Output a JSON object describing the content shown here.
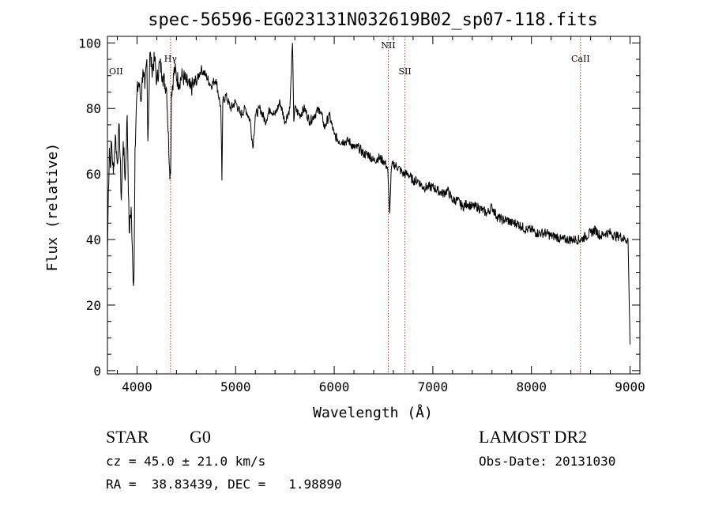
{
  "chart_data": {
    "type": "line",
    "title": "spec-56596-EG023131N032619B02_sp07-118.fits",
    "xlabel": "Wavelength (Å)",
    "ylabel": "Flux (relative)",
    "xlim": [
      3700,
      9100
    ],
    "ylim": [
      -1,
      102
    ],
    "x_ticks": [
      "4000",
      "5000",
      "6000",
      "7000",
      "8000",
      "9000"
    ],
    "y_ticks": [
      "0",
      "20",
      "40",
      "60",
      "80",
      "100"
    ],
    "grid": false,
    "series": [
      {
        "x": [
          3700,
          3710,
          3720,
          3730,
          3740,
          3760,
          3780,
          3800,
          3820,
          3840,
          3860,
          3880,
          3900,
          3920,
          3940,
          3960,
          3970,
          3980,
          4000,
          4020,
          4040,
          4060,
          4080,
          4100,
          4110,
          4130,
          4150,
          4180,
          4200,
          4230,
          4260,
          4300,
          4330,
          4340,
          4350,
          4380,
          4420,
          4460,
          4500,
          4540,
          4600,
          4650,
          4700,
          4750,
          4800,
          4850,
          4861,
          4870,
          4900,
          4950,
          5000,
          5050,
          5100,
          5150,
          5175,
          5200,
          5250,
          5300,
          5350,
          5400,
          5450,
          5500,
          5550,
          5577,
          5590,
          5600,
          5650,
          5700,
          5750,
          5800,
          5850,
          5890,
          5900,
          5950,
          6000,
          6050,
          6100,
          6150,
          6200,
          6250,
          6300,
          6350,
          6400,
          6450,
          6500,
          6540,
          6563,
          6580,
          6600,
          6650,
          6700,
          6750,
          6800,
          6850,
          6900,
          6950,
          7000,
          7050,
          7100,
          7150,
          7200,
          7250,
          7300,
          7350,
          7400,
          7450,
          7500,
          7550,
          7600,
          7650,
          7700,
          7750,
          7800,
          7850,
          7900,
          7950,
          8000,
          8050,
          8100,
          8150,
          8200,
          8250,
          8300,
          8350,
          8400,
          8450,
          8500,
          8550,
          8600,
          8650,
          8700,
          8750,
          8800,
          8850,
          8900,
          8950,
          8980,
          9000
        ],
        "values": [
          35,
          55,
          68,
          62,
          70,
          60,
          72,
          63,
          75,
          52,
          70,
          58,
          78,
          42,
          50,
          27,
          30,
          68,
          85,
          88,
          82,
          92,
          86,
          95,
          70,
          97,
          92,
          95,
          88,
          94,
          90,
          86,
          62,
          60,
          85,
          92,
          88,
          90,
          88,
          86,
          88,
          92,
          90,
          87,
          89,
          80,
          58,
          82,
          84,
          80,
          82,
          78,
          80,
          76,
          68,
          78,
          80,
          76,
          80,
          78,
          82,
          76,
          80,
          100,
          76,
          80,
          78,
          80,
          76,
          78,
          80,
          76,
          74,
          78,
          72,
          70,
          70,
          70,
          68,
          68,
          66,
          66,
          64,
          65,
          64,
          62,
          48,
          62,
          63,
          62,
          60,
          60,
          58,
          58,
          56,
          56,
          56,
          55,
          54,
          55,
          52,
          52,
          50,
          51,
          50,
          50,
          49,
          48,
          50,
          47,
          46,
          46,
          45,
          45,
          44,
          43,
          43,
          42,
          42,
          42,
          41,
          41,
          40,
          40,
          40,
          40,
          40,
          41,
          42,
          43,
          41,
          42,
          42,
          41,
          41,
          40,
          40,
          8
        ]
      }
    ],
    "annotations": [
      {
        "label": "OII",
        "x": 3727
      },
      {
        "label": "Hγ",
        "x": 4340
      },
      {
        "label": "NII",
        "x": 6548
      },
      {
        "label": "SII",
        "x": 6717
      },
      {
        "label": "CaII",
        "x": 8498
      }
    ]
  },
  "info": {
    "object_type": "STAR",
    "subclass": "G0",
    "survey": "LAMOST DR2",
    "cz": "cz = 45.0 ± 21.0 km/s",
    "obs_date": "Obs-Date: 20131030",
    "coords": "RA =  38.83439, DEC =   1.98890"
  },
  "colors": {
    "spectrum": "#000000",
    "line_markers": "#a0322d"
  }
}
